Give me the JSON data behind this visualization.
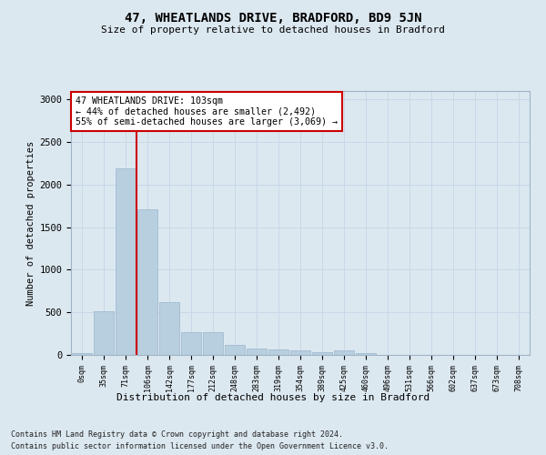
{
  "title1": "47, WHEATLANDS DRIVE, BRADFORD, BD9 5JN",
  "title2": "Size of property relative to detached houses in Bradford",
  "xlabel": "Distribution of detached houses by size in Bradford",
  "ylabel": "Number of detached properties",
  "footnote1": "Contains HM Land Registry data © Crown copyright and database right 2024.",
  "footnote2": "Contains public sector information licensed under the Open Government Licence v3.0.",
  "bar_labels": [
    "0sqm",
    "35sqm",
    "71sqm",
    "106sqm",
    "142sqm",
    "177sqm",
    "212sqm",
    "248sqm",
    "283sqm",
    "319sqm",
    "354sqm",
    "389sqm",
    "425sqm",
    "460sqm",
    "496sqm",
    "531sqm",
    "566sqm",
    "602sqm",
    "637sqm",
    "673sqm",
    "708sqm"
  ],
  "bar_values": [
    20,
    510,
    2190,
    1710,
    620,
    265,
    265,
    120,
    70,
    60,
    50,
    30,
    55,
    25,
    5,
    3,
    2,
    1,
    1,
    1,
    0
  ],
  "bar_color": "#b8cfe0",
  "bar_edge_color": "#9ab5cc",
  "grid_color": "#c8d8e8",
  "bg_color": "#dce8f0",
  "vline_color": "#cc0000",
  "annotation_text": "47 WHEATLANDS DRIVE: 103sqm\n← 44% of detached houses are smaller (2,492)\n55% of semi-detached houses are larger (3,069) →",
  "annotation_box_color": "#ffffff",
  "annotation_box_edge": "#cc0000",
  "ylim": [
    0,
    3100
  ],
  "yticks": [
    0,
    500,
    1000,
    1500,
    2000,
    2500,
    3000
  ],
  "vline_pos": 2.5
}
